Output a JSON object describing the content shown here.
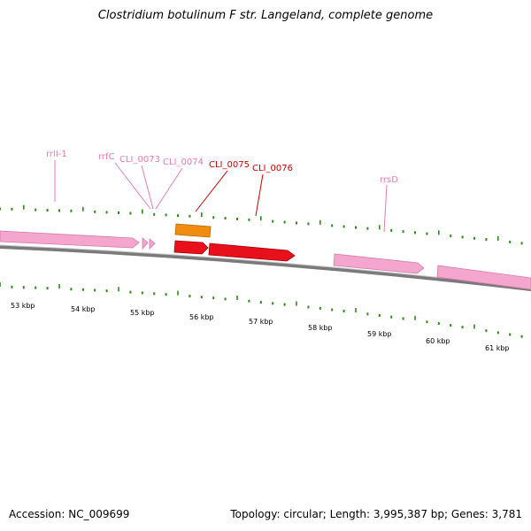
{
  "title": "Clostridium botulinum F str. Langeland, complete genome",
  "footer": {
    "accession": "Accession: NC_009699",
    "summary": "Topology: circular; Length: 3,995,387 bp; Genes: 3,781"
  },
  "colors": {
    "rna": "#f4a6cf",
    "cds_highlight": "#e8101a",
    "cds_alt": "#f08c10",
    "tick": "#2e8b1a",
    "backbone": "#7a7a7a",
    "label_rna": "#e87ab4",
    "label_cds": "#cc0000"
  },
  "kbp_labels": [
    "53 kbp",
    "54 kbp",
    "55 kbp",
    "56 kbp",
    "57 kbp",
    "58 kbp",
    "59 kbp",
    "60 kbp",
    "61 kbp"
  ],
  "feature_labels": [
    {
      "text": "rrlI-1",
      "kind": "rna"
    },
    {
      "text": "rrfC",
      "kind": "rna"
    },
    {
      "text": "CLI_0073",
      "kind": "rna"
    },
    {
      "text": "CLI_0074",
      "kind": "rna"
    },
    {
      "text": "CLI_0075",
      "kind": "cds"
    },
    {
      "text": "CLI_0076",
      "kind": "cds"
    },
    {
      "text": "rrsD",
      "kind": "rna"
    }
  ]
}
